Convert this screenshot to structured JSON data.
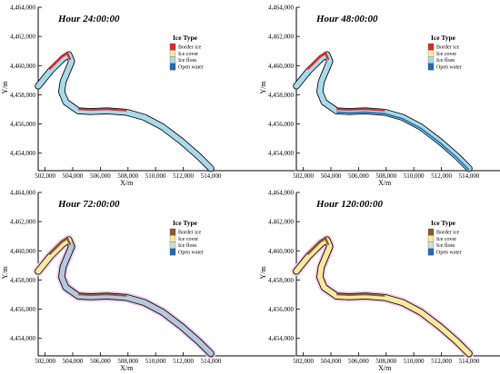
{
  "chart_data": [
    {
      "type": "map",
      "title": "Hour  24:00:00",
      "xlabel": "X/m",
      "ylabel": "Y/m",
      "xticks": [
        "502,000",
        "504,000",
        "506,000",
        "508,000",
        "510,000",
        "512,000",
        "514,000"
      ],
      "yticks": [
        "4,454,000",
        "4,456,000",
        "4,458,000",
        "4,460,000",
        "4,462,000",
        "4,464,000"
      ],
      "xlim": [
        501500,
        514200
      ],
      "ylim": [
        4452800,
        4464000
      ],
      "legend_title": "Ice Type",
      "legend": [
        {
          "label": "Border ice",
          "color": "#e0282a"
        },
        {
          "label": "Ice cover",
          "color": "#fbe8a0"
        },
        {
          "label": "Ice floes",
          "color": "#a9d9ea"
        },
        {
          "label": "Open water",
          "color": "#1f6bb4"
        }
      ],
      "river_fill": "#a9d9ea",
      "border_color": "#e0282a",
      "border_extent": "bend"
    },
    {
      "type": "map",
      "title": "Hour  48:00:00",
      "xlabel": "X/m",
      "ylabel": "Y/m",
      "xticks": [
        "502,000",
        "504,000",
        "506,000",
        "508,000",
        "510,000",
        "512,000",
        "514,000"
      ],
      "yticks": [
        "4,454,000",
        "4,456,000",
        "4,458,000",
        "4,460,000",
        "4,462,000",
        "4,464,000"
      ],
      "xlim": [
        501500,
        514200
      ],
      "ylim": [
        4452800,
        4464000
      ],
      "legend_title": "Ice Type",
      "legend": [
        {
          "label": "Border ice",
          "color": "#e0282a"
        },
        {
          "label": "Ice cover",
          "color": "#fbe8a0"
        },
        {
          "label": "Ice floes",
          "color": "#a9d9ea"
        },
        {
          "label": "Open water",
          "color": "#1f6bb4"
        }
      ],
      "river_fill": "#a9d9ea",
      "border_color": "#e0282a",
      "border_extent": "bend",
      "open_water_edge": true
    },
    {
      "type": "map",
      "title": "Hour  72:00:00",
      "xlabel": "X/m",
      "ylabel": "Y/m",
      "xticks": [
        "502,000",
        "504,000",
        "506,000",
        "508,000",
        "510,000",
        "512,000",
        "514,000"
      ],
      "yticks": [
        "4,454,000",
        "4,456,000",
        "4,458,000",
        "4,460,000",
        "4,462,000",
        "4,464,000"
      ],
      "xlim": [
        501500,
        514200
      ],
      "ylim": [
        4452800,
        4464000
      ],
      "legend_title": "Ice Type",
      "legend": [
        {
          "label": "Border ice",
          "color": "#8b5a2b"
        },
        {
          "label": "Ice cover",
          "color": "#fbe8a0"
        },
        {
          "label": "Ice floes",
          "color": "#c9ddea"
        },
        {
          "label": "Open water",
          "color": "#1f6bb4"
        }
      ],
      "river_fill": "#b8c8dc",
      "upstream_fill": "#fbe8a0",
      "border_color": "#8b5a2b",
      "border_extent": "bend",
      "halo": "#f2c8e8"
    },
    {
      "type": "map",
      "title": "Hour  120:00:00",
      "xlabel": "X/m",
      "ylabel": "Y/m",
      "xticks": [
        "502,000",
        "504,000",
        "506,000",
        "508,000",
        "510,000",
        "512,000",
        "514,000"
      ],
      "yticks": [
        "4,454,000",
        "4,456,000",
        "4,458,000",
        "4,460,000",
        "4,462,000",
        "4,464,000"
      ],
      "xlim": [
        501500,
        514200
      ],
      "ylim": [
        4452800,
        4464000
      ],
      "legend_title": "Ice Type",
      "legend": [
        {
          "label": "Border ice",
          "color": "#8b5a2b"
        },
        {
          "label": "Ice cover",
          "color": "#fbe8a0"
        },
        {
          "label": "Ice floes",
          "color": "#c9ddea"
        },
        {
          "label": "Open water",
          "color": "#1f6bb4"
        }
      ],
      "river_fill": "#fbe8a0",
      "border_color": "#8b5a2b",
      "border_extent": "bend",
      "halo": "#f2c8e8"
    }
  ],
  "river_centerline": [
    [
      501500,
      4458600
    ],
    [
      502400,
      4459650
    ],
    [
      503300,
      4460500
    ],
    [
      503720,
      4460750
    ],
    [
      503920,
      4460300
    ],
    [
      503300,
      4458900
    ],
    [
      503200,
      4458200
    ],
    [
      503500,
      4457500
    ],
    [
      504400,
      4456900
    ],
    [
      505300,
      4456850
    ],
    [
      506500,
      4456900
    ],
    [
      507900,
      4456800
    ],
    [
      509200,
      4456450
    ],
    [
      510500,
      4455800
    ],
    [
      511900,
      4454800
    ],
    [
      513100,
      4453800
    ],
    [
      514000,
      4452950
    ]
  ]
}
